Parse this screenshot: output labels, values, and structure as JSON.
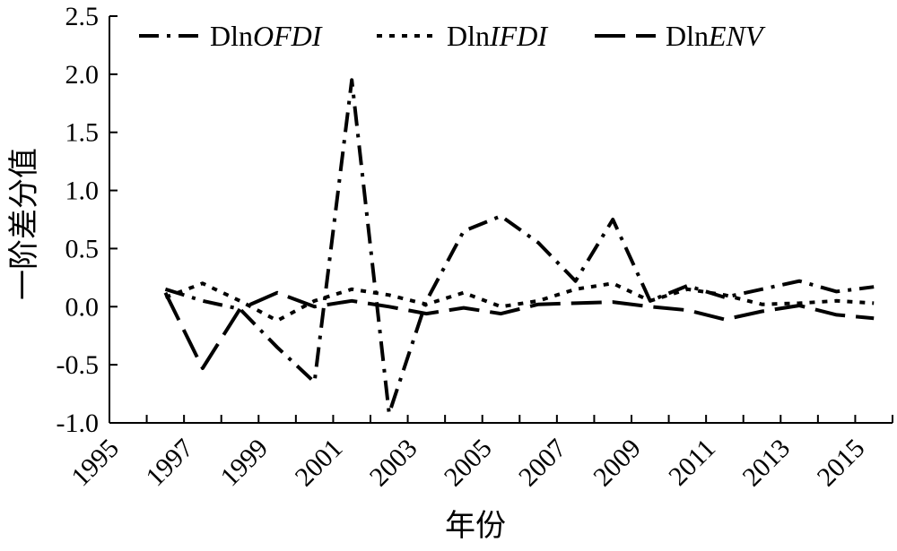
{
  "chart_data": {
    "type": "line",
    "title": "",
    "xlabel": "年份",
    "ylabel": "一阶差分值",
    "xlim": [
      1995,
      2016
    ],
    "ylim": [
      -1.0,
      2.5
    ],
    "grid": false,
    "legend_position": "top",
    "x_ticks": [
      "1995",
      "1997",
      "1999",
      "2001",
      "2003",
      "2005",
      "2007",
      "2009",
      "2011",
      "2013",
      "2015"
    ],
    "y_ticks": [
      "2.5",
      "2.0",
      "1.5",
      "1.0",
      "0.5",
      "0.0",
      "-0.5",
      "-1.0"
    ],
    "x": [
      1996.5,
      1997.5,
      1998.5,
      1999.5,
      2000.5,
      2001.5,
      2002.5,
      2003.5,
      2004.5,
      2005.5,
      2006.5,
      2007.5,
      2008.5,
      2009.5,
      2010.5,
      2011.5,
      2012.5,
      2013.5,
      2014.5,
      2015.5
    ],
    "series": [
      {
        "name": "DlnOFDI",
        "legend_prefix": "Dln",
        "legend_italic": "OFDI",
        "dash": "dashdot",
        "values": [
          0.15,
          0.05,
          -0.02,
          -0.35,
          -0.65,
          1.95,
          -0.92,
          0.05,
          0.65,
          0.78,
          0.55,
          0.22,
          0.75,
          0.05,
          0.18,
          0.08,
          0.15,
          0.22,
          0.13,
          0.17
        ]
      },
      {
        "name": "DlnIFDI",
        "legend_prefix": "Dln",
        "legend_italic": "IFDI",
        "dash": "dotted",
        "values": [
          0.08,
          0.2,
          0.05,
          -0.12,
          0.05,
          0.15,
          0.1,
          0.02,
          0.12,
          0.0,
          0.05,
          0.15,
          0.2,
          0.05,
          0.15,
          0.1,
          0.02,
          0.03,
          0.05,
          0.03
        ]
      },
      {
        "name": "DlnENV",
        "legend_prefix": "Dln",
        "legend_italic": "ENV",
        "dash": "longdash",
        "values": [
          0.12,
          -0.53,
          -0.02,
          0.12,
          0.0,
          0.05,
          0.0,
          -0.06,
          -0.01,
          -0.06,
          0.02,
          0.03,
          0.04,
          0.0,
          -0.03,
          -0.11,
          -0.04,
          0.01,
          -0.07,
          -0.1
        ]
      }
    ]
  }
}
